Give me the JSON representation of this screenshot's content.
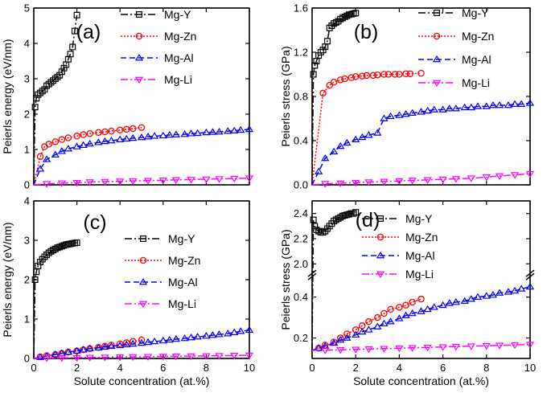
{
  "chart_data": [
    {
      "type": "line",
      "panel_label": "(a)",
      "xlabel": "",
      "ylabel": "Peierls energy (eV/nm)",
      "xlim": [
        0,
        10
      ],
      "ylim": [
        0,
        5
      ],
      "xticks": [],
      "xtick_labels": [],
      "yticks": [
        0,
        1,
        2,
        3,
        4,
        5
      ],
      "ytick_labels": [
        "0",
        "1",
        "2",
        "3",
        "4",
        "5"
      ],
      "legend_position": "top-right",
      "series": [
        {
          "name": "Mg-Y",
          "color": "#000000",
          "marker": "square",
          "dash": "dashdot",
          "x": [
            0,
            0.06,
            0.12,
            0.2,
            0.3,
            0.4,
            0.5,
            0.6,
            0.7,
            0.8,
            0.9,
            1.0,
            1.1,
            1.2,
            1.3,
            1.4,
            1.5,
            1.6,
            1.7,
            1.8,
            1.9,
            2.0
          ],
          "y": [
            0,
            2.2,
            2.45,
            2.55,
            2.6,
            2.65,
            2.7,
            2.8,
            2.85,
            2.9,
            2.95,
            3.0,
            3.05,
            3.1,
            3.2,
            3.3,
            3.4,
            3.55,
            3.7,
            3.9,
            4.35,
            4.8
          ]
        },
        {
          "name": "Mg-Zn",
          "color": "#ff0000",
          "marker": "circle",
          "dash": "dotted",
          "x": [
            0,
            0.3,
            0.5,
            0.7,
            1.0,
            1.3,
            1.6,
            2.0,
            2.3,
            2.6,
            3.0,
            3.3,
            3.6,
            4.0,
            4.3,
            4.6,
            5.0
          ],
          "y": [
            0,
            0.8,
            1.08,
            1.15,
            1.22,
            1.28,
            1.33,
            1.38,
            1.42,
            1.45,
            1.48,
            1.5,
            1.52,
            1.55,
            1.57,
            1.59,
            1.62
          ]
        },
        {
          "name": "Mg-Al",
          "color": "#0000ff",
          "marker": "triangle-up",
          "dash": "dashed",
          "x": [
            0,
            0.3,
            0.6,
            1.0,
            1.3,
            1.6,
            2.0,
            2.3,
            2.6,
            3.0,
            3.3,
            3.6,
            4.0,
            4.3,
            4.6,
            5.0,
            5.3,
            5.6,
            6.0,
            6.3,
            6.6,
            7.0,
            7.3,
            7.6,
            8.0,
            8.3,
            8.6,
            9.0,
            9.3,
            9.6,
            10.0
          ],
          "y": [
            0,
            0.45,
            0.72,
            0.85,
            0.95,
            1.02,
            1.08,
            1.12,
            1.16,
            1.2,
            1.23,
            1.25,
            1.28,
            1.3,
            1.32,
            1.34,
            1.36,
            1.38,
            1.39,
            1.41,
            1.42,
            1.43,
            1.45,
            1.46,
            1.48,
            1.49,
            1.5,
            1.52,
            1.53,
            1.55,
            1.57
          ]
        },
        {
          "name": "Mg-Li",
          "color": "#ff00ff",
          "marker": "triangle-down",
          "dash": "dashdot",
          "x": [
            0,
            0.6,
            1.3,
            2.0,
            2.6,
            3.3,
            4.0,
            4.6,
            5.3,
            6.0,
            6.6,
            7.3,
            8.0,
            8.6,
            9.3,
            10.0
          ],
          "y": [
            0,
            0.03,
            0.05,
            0.06,
            0.08,
            0.09,
            0.1,
            0.11,
            0.12,
            0.13,
            0.14,
            0.15,
            0.16,
            0.17,
            0.18,
            0.19
          ]
        }
      ]
    },
    {
      "type": "line",
      "panel_label": "(b)",
      "xlabel": "",
      "ylabel": "Peierls stress (GPa)",
      "xlim": [
        0,
        10
      ],
      "ylim": [
        0,
        1.6
      ],
      "xticks": [],
      "xtick_labels": [],
      "yticks": [
        0,
        0.4,
        0.8,
        1.2,
        1.6
      ],
      "ytick_labels": [
        "0.0",
        "0.4",
        "0.8",
        "1.2",
        "1.6"
      ],
      "legend_position": "top-right",
      "series": [
        {
          "name": "Mg-Y",
          "color": "#000000",
          "marker": "square",
          "dash": "dashdot",
          "x": [
            0,
            0.06,
            0.12,
            0.2,
            0.3,
            0.4,
            0.5,
            0.6,
            0.7,
            0.8,
            0.9,
            1.0,
            1.1,
            1.2,
            1.3,
            1.4,
            1.5,
            1.6,
            1.7,
            1.8,
            1.9,
            2.0
          ],
          "y": [
            0,
            1.0,
            1.08,
            1.12,
            1.17,
            1.2,
            1.22,
            1.25,
            1.3,
            1.42,
            1.44,
            1.46,
            1.47,
            1.48,
            1.5,
            1.51,
            1.52,
            1.53,
            1.54,
            1.545,
            1.55,
            1.555
          ]
        },
        {
          "name": "Mg-Zn",
          "color": "#ff0000",
          "marker": "circle",
          "dash": "dotted",
          "x": [
            0,
            0.5,
            0.8,
            1.0,
            1.3,
            1.5,
            1.8,
            2.0,
            2.3,
            2.5,
            2.8,
            3.0,
            3.3,
            3.5,
            3.8,
            4.0,
            4.3,
            4.5,
            5.0
          ],
          "y": [
            0,
            0.83,
            0.9,
            0.93,
            0.95,
            0.96,
            0.97,
            0.98,
            0.985,
            0.99,
            0.99,
            0.995,
            1.0,
            1.0,
            1.0,
            1.0,
            1.005,
            1.005,
            1.01
          ]
        },
        {
          "name": "Mg-Al",
          "color": "#0000ff",
          "marker": "triangle-up",
          "dash": "dashed",
          "x": [
            0,
            0.3,
            0.6,
            1.0,
            1.3,
            1.6,
            2.0,
            2.3,
            2.6,
            3.0,
            3.3,
            3.6,
            4.0,
            4.3,
            4.6,
            5.0,
            5.3,
            5.6,
            6.0,
            6.3,
            6.6,
            7.0,
            7.3,
            7.6,
            8.0,
            8.3,
            8.6,
            9.0,
            9.3,
            9.6,
            10.0
          ],
          "y": [
            0,
            0.12,
            0.24,
            0.3,
            0.35,
            0.38,
            0.41,
            0.43,
            0.45,
            0.47,
            0.6,
            0.62,
            0.63,
            0.64,
            0.65,
            0.66,
            0.67,
            0.68,
            0.68,
            0.69,
            0.69,
            0.7,
            0.7,
            0.71,
            0.71,
            0.72,
            0.72,
            0.72,
            0.73,
            0.73,
            0.74
          ]
        },
        {
          "name": "Mg-Li",
          "color": "#ff00ff",
          "marker": "triangle-down",
          "dash": "dashdot",
          "x": [
            0,
            0.6,
            1.3,
            2.0,
            2.6,
            3.3,
            4.0,
            4.6,
            5.3,
            6.0,
            6.6,
            7.3,
            8.0,
            8.6,
            9.3,
            10.0
          ],
          "y": [
            0,
            0.01,
            0.015,
            0.02,
            0.025,
            0.03,
            0.035,
            0.04,
            0.045,
            0.05,
            0.055,
            0.06,
            0.07,
            0.08,
            0.09,
            0.1
          ]
        }
      ]
    },
    {
      "type": "line",
      "panel_label": "(c)",
      "xlabel": "Solute concentration (at.%)",
      "ylabel": "Peierls energy (eV/nm)",
      "xlim": [
        0,
        10
      ],
      "ylim": [
        0,
        4
      ],
      "xticks": [
        0,
        2,
        4,
        6,
        8,
        10
      ],
      "xtick_labels": [
        "0",
        "2",
        "4",
        "6",
        "8",
        "10"
      ],
      "yticks": [
        0,
        1,
        2,
        3,
        4
      ],
      "ytick_labels": [
        "0",
        "1",
        "2",
        "3",
        "4"
      ],
      "legend_position": "right",
      "series": [
        {
          "name": "Mg-Y",
          "color": "#000000",
          "marker": "square",
          "dash": "dashdot",
          "x": [
            0,
            0.06,
            0.12,
            0.2,
            0.3,
            0.4,
            0.5,
            0.6,
            0.7,
            0.8,
            0.9,
            1.0,
            1.1,
            1.2,
            1.3,
            1.4,
            1.5,
            1.6,
            1.7,
            1.8,
            1.9,
            2.0
          ],
          "y": [
            0,
            2.0,
            2.2,
            2.35,
            2.45,
            2.52,
            2.58,
            2.63,
            2.68,
            2.72,
            2.75,
            2.78,
            2.81,
            2.83,
            2.85,
            2.87,
            2.89,
            2.9,
            2.91,
            2.92,
            2.93,
            2.94
          ]
        },
        {
          "name": "Mg-Zn",
          "color": "#ff0000",
          "marker": "circle",
          "dash": "dotted",
          "x": [
            0,
            0.3,
            0.6,
            1.0,
            1.3,
            1.6,
            2.0,
            2.3,
            2.6,
            3.0,
            3.3,
            3.6,
            4.0,
            4.3,
            4.6,
            5.0
          ],
          "y": [
            0,
            0.04,
            0.07,
            0.1,
            0.13,
            0.16,
            0.19,
            0.22,
            0.25,
            0.28,
            0.31,
            0.34,
            0.37,
            0.4,
            0.43,
            0.47
          ]
        },
        {
          "name": "Mg-Al",
          "color": "#0000ff",
          "marker": "triangle-up",
          "dash": "dashed",
          "x": [
            0,
            0.3,
            0.6,
            1.0,
            1.3,
            1.6,
            2.0,
            2.3,
            2.6,
            3.0,
            3.3,
            3.6,
            4.0,
            4.3,
            4.6,
            5.0,
            5.3,
            5.6,
            6.0,
            6.3,
            6.6,
            7.0,
            7.3,
            7.6,
            8.0,
            8.3,
            8.6,
            9.0,
            9.3,
            9.6,
            10.0
          ],
          "y": [
            0,
            0.03,
            0.06,
            0.1,
            0.13,
            0.16,
            0.19,
            0.22,
            0.25,
            0.27,
            0.29,
            0.31,
            0.33,
            0.35,
            0.37,
            0.39,
            0.41,
            0.43,
            0.45,
            0.47,
            0.49,
            0.51,
            0.53,
            0.55,
            0.57,
            0.59,
            0.61,
            0.63,
            0.66,
            0.69,
            0.72
          ]
        },
        {
          "name": "Mg-Li",
          "color": "#ff00ff",
          "marker": "triangle-down",
          "dash": "dashdot",
          "x": [
            0,
            0.6,
            1.3,
            2.0,
            2.6,
            3.3,
            4.0,
            4.6,
            5.3,
            6.0,
            6.6,
            7.3,
            8.0,
            8.6,
            9.3,
            10.0
          ],
          "y": [
            0,
            0.01,
            0.015,
            0.02,
            0.025,
            0.03,
            0.035,
            0.04,
            0.045,
            0.05,
            0.055,
            0.06,
            0.065,
            0.07,
            0.075,
            0.08
          ]
        }
      ]
    },
    {
      "type": "line",
      "panel_label": "(d)",
      "xlabel": "Solute concentration (at.%)",
      "ylabel": "Peierls stress (GPa)",
      "xlim": [
        0,
        10
      ],
      "ylim": [
        0.1,
        2.5
      ],
      "axis_break": {
        "lower": [
          0.1,
          0.5
        ],
        "upper": [
          1.95,
          2.5
        ],
        "upper_ticks": [
          2.0,
          2.2,
          2.4
        ]
      },
      "xticks": [
        0,
        2,
        4,
        6,
        8,
        10
      ],
      "xtick_labels": [
        "0",
        "2",
        "4",
        "6",
        "8",
        "10"
      ],
      "yticks": [
        0.2,
        0.4,
        2.0,
        2.2,
        2.4
      ],
      "ytick_labels": [
        "0.2",
        "0.4",
        "2.0",
        "2.2",
        "2.4"
      ],
      "legend_position": "right",
      "series": [
        {
          "name": "Mg-Y",
          "color": "#000000",
          "marker": "square",
          "dash": "dashdot",
          "x": [
            0,
            0.06,
            0.12,
            0.2,
            0.3,
            0.4,
            0.5,
            0.6,
            0.7,
            0.8,
            0.9,
            1.0,
            1.1,
            1.2,
            1.3,
            1.4,
            1.5,
            1.6,
            1.7,
            1.8,
            1.9,
            2.0
          ],
          "y": [
            0.14,
            2.35,
            2.3,
            2.27,
            2.26,
            2.25,
            2.25,
            2.26,
            2.28,
            2.3,
            2.32,
            2.34,
            2.35,
            2.36,
            2.37,
            2.38,
            2.385,
            2.39,
            2.395,
            2.4,
            2.4,
            2.41
          ]
        },
        {
          "name": "Mg-Zn",
          "color": "#ff0000",
          "marker": "circle",
          "dash": "dotted",
          "x": [
            0,
            0.3,
            0.6,
            1.0,
            1.3,
            1.6,
            2.0,
            2.3,
            2.6,
            3.0,
            3.3,
            3.6,
            4.0,
            4.3,
            4.6,
            5.0
          ],
          "y": [
            0.14,
            0.15,
            0.165,
            0.18,
            0.2,
            0.22,
            0.24,
            0.26,
            0.28,
            0.3,
            0.32,
            0.34,
            0.35,
            0.36,
            0.375,
            0.39
          ]
        },
        {
          "name": "Mg-Al",
          "color": "#0000ff",
          "marker": "triangle-up",
          "dash": "dashed",
          "x": [
            0,
            0.3,
            0.6,
            1.0,
            1.3,
            1.6,
            2.0,
            2.3,
            2.6,
            3.0,
            3.3,
            3.6,
            4.0,
            4.3,
            4.6,
            5.0,
            5.3,
            5.6,
            6.0,
            6.3,
            6.6,
            7.0,
            7.3,
            7.6,
            8.0,
            8.3,
            8.6,
            9.0,
            9.3,
            9.6,
            10.0
          ],
          "y": [
            0.14,
            0.15,
            0.16,
            0.175,
            0.19,
            0.2,
            0.215,
            0.23,
            0.24,
            0.255,
            0.27,
            0.28,
            0.295,
            0.31,
            0.32,
            0.33,
            0.34,
            0.35,
            0.36,
            0.37,
            0.375,
            0.38,
            0.39,
            0.4,
            0.405,
            0.41,
            0.42,
            0.425,
            0.43,
            0.44,
            0.45
          ]
        },
        {
          "name": "Mg-Li",
          "color": "#ff00ff",
          "marker": "triangle-down",
          "dash": "dashdot",
          "x": [
            0,
            0.6,
            1.3,
            2.0,
            2.6,
            3.3,
            4.0,
            4.6,
            5.3,
            6.0,
            6.6,
            7.3,
            8.0,
            8.6,
            9.3,
            10.0
          ],
          "y": [
            0.14,
            0.14,
            0.142,
            0.144,
            0.146,
            0.148,
            0.15,
            0.152,
            0.154,
            0.156,
            0.158,
            0.16,
            0.162,
            0.164,
            0.166,
            0.168
          ]
        }
      ]
    }
  ]
}
